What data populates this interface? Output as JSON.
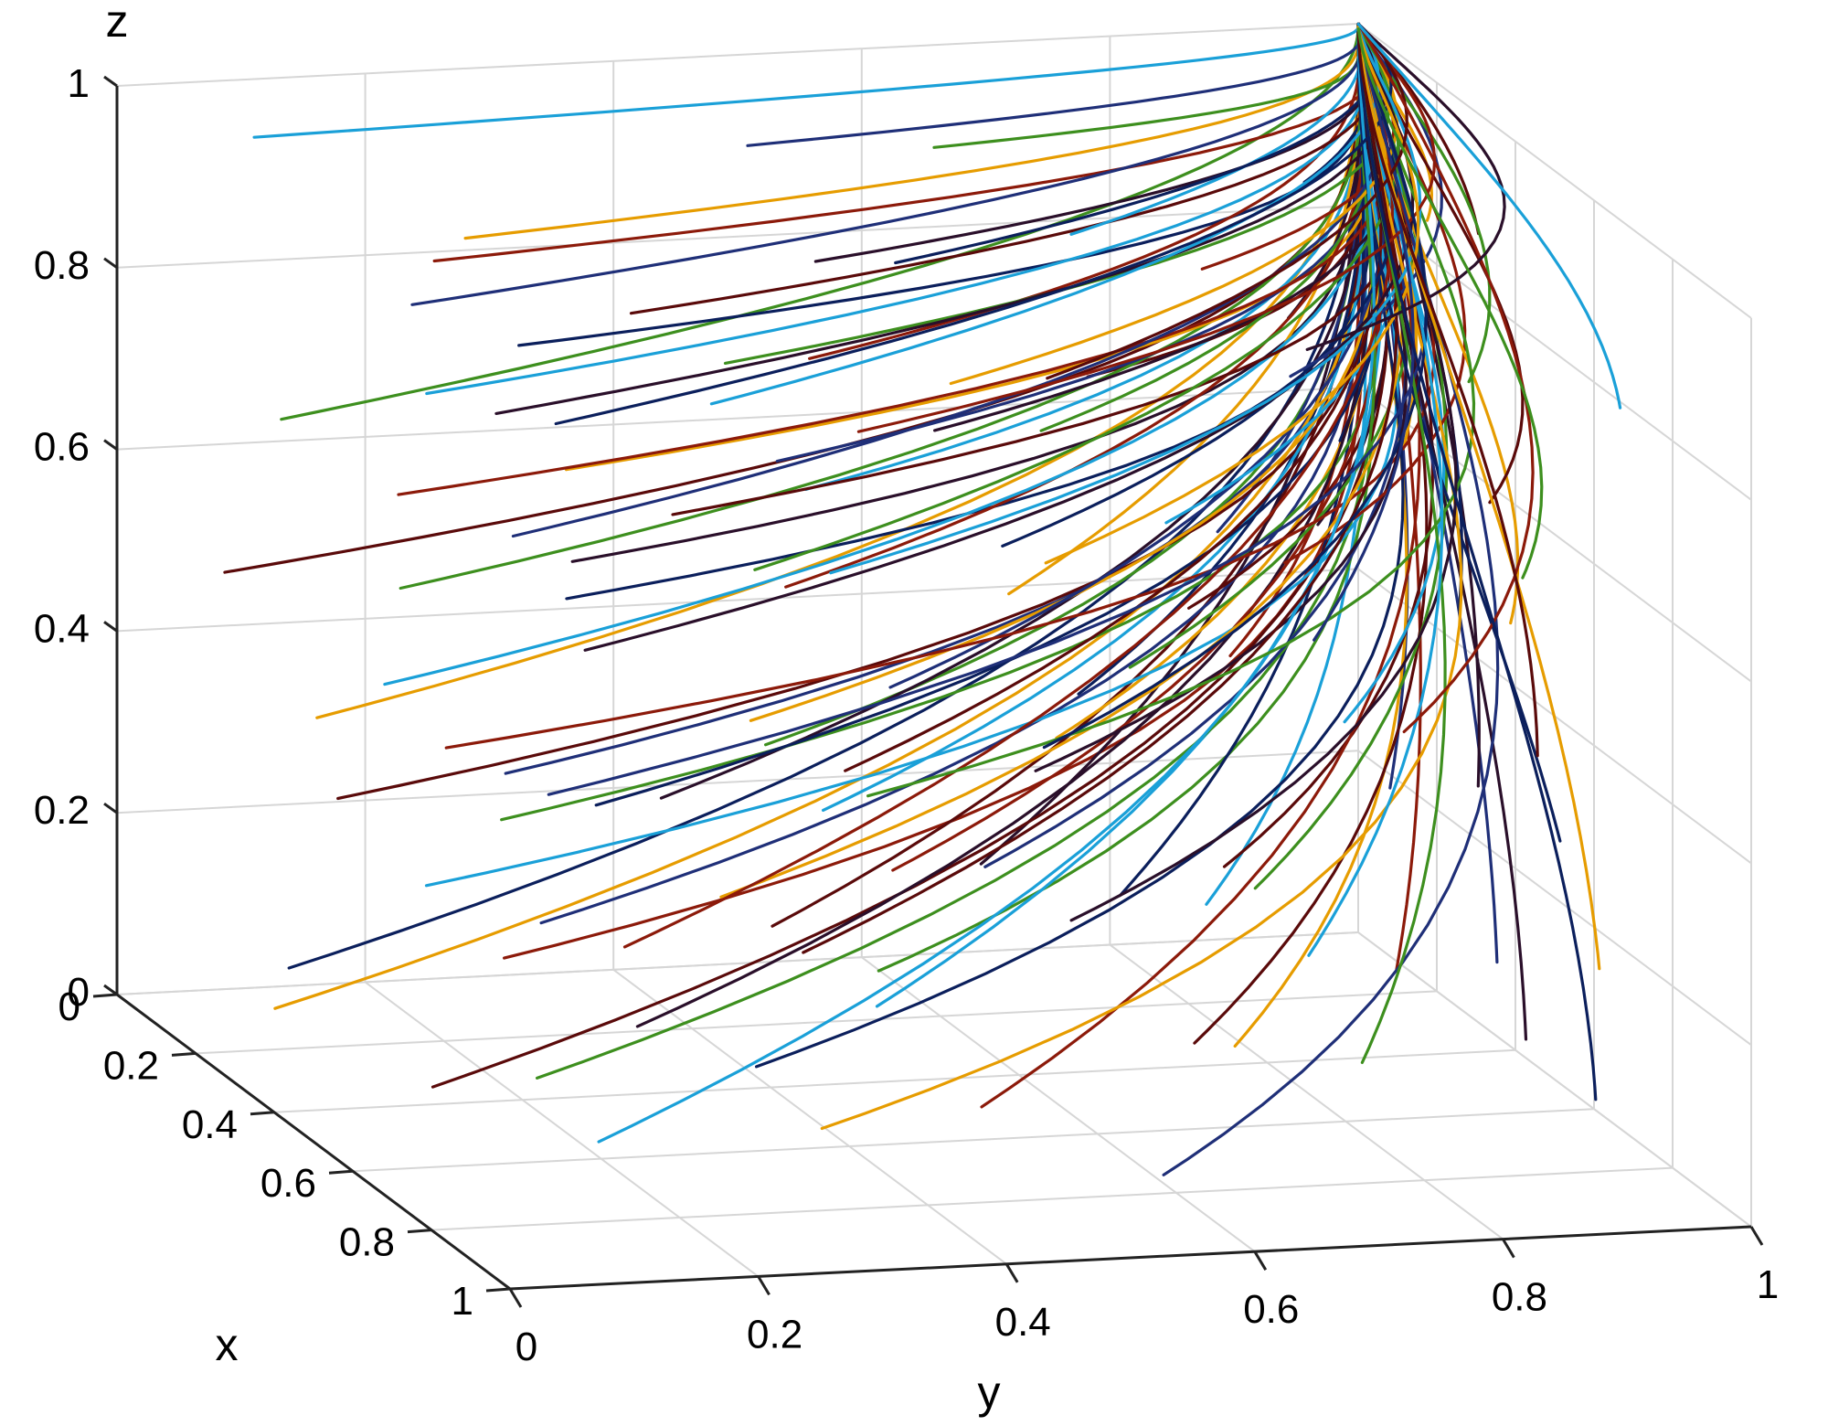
{
  "chart_data": {
    "type": "line",
    "title": "",
    "xlabel": "x",
    "ylabel": "y",
    "zlabel": "z",
    "xlim": [
      0,
      1
    ],
    "ylim": [
      0,
      1
    ],
    "zlim": [
      0,
      1
    ],
    "x_ticks": [
      "0",
      "0.2",
      "0.4",
      "0.6",
      "0.8",
      "1"
    ],
    "y_ticks": [
      "0",
      "0.2",
      "0.4",
      "0.6",
      "0.8",
      "1"
    ],
    "z_ticks": [
      "0",
      "0.2",
      "0.4",
      "0.6",
      "0.8",
      "1"
    ],
    "grid": true,
    "legend": "none",
    "converge_point": {
      "x": 0,
      "y": 1,
      "z": 1
    },
    "palette": [
      "#0b1f5c",
      "#e69c00",
      "#5a0a0a",
      "#3d8f1e",
      "#1aa0d8",
      "#8c1a0a",
      "#1f2f78",
      "#2a0f2a"
    ],
    "series_description": "Evolutionary trajectories from a grid of initial points (x, y, z) in [0,1]^3, all converging to (x=0, y=1, z=1)",
    "initial_points": {
      "x": [
        0.1,
        0.3,
        0.5,
        0.7,
        0.9
      ],
      "y": [
        0.1,
        0.3,
        0.5,
        0.7,
        0.9
      ],
      "z": [
        0.1,
        0.3,
        0.5,
        0.7,
        0.9
      ]
    }
  }
}
